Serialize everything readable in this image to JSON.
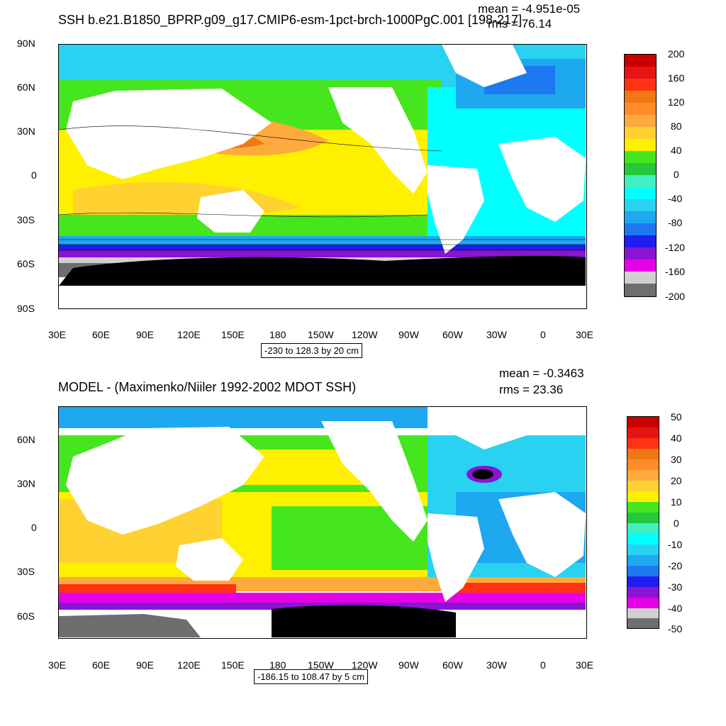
{
  "panels": [
    {
      "title": "SSH b.e21.B1850_BPRP.g09_g17.CMIP6-esm-1pct-brch-1000PgC.001 [198-217]",
      "mean": "mean = -4.951e-05",
      "rms": "rms = 76.14",
      "lat_labels": [
        "90N",
        "60N",
        "30N",
        "0",
        "30S",
        "60S",
        "90S"
      ],
      "lon_labels": [
        "30E",
        "60E",
        "90E",
        "120E",
        "150E",
        "180",
        "150W",
        "120W",
        "90W",
        "60W",
        "30W",
        "0",
        "30E"
      ],
      "range_label": "-230 to 128.3 by 20 cm",
      "colorbar_labels": [
        "200",
        "160",
        "120",
        "80",
        "40",
        "0",
        "-40",
        "-80",
        "-120",
        "-160",
        "-200"
      ]
    },
    {
      "title": "MODEL - (Maximenko/Niiler 1992-2002 MDOT SSH)",
      "mean": "mean = -0.3463",
      "rms": "rms = 23.36",
      "lat_labels": [
        "60N",
        "30N",
        "0",
        "30S",
        "60S"
      ],
      "lon_labels": [
        "30E",
        "60E",
        "90E",
        "120E",
        "150E",
        "180",
        "150W",
        "120W",
        "90W",
        "60W",
        "30W",
        "0",
        "30E"
      ],
      "range_label": "-186.15 to 108.47 by 5 cm",
      "colorbar_labels": [
        "50",
        "40",
        "30",
        "20",
        "10",
        "0",
        "-10",
        "-20",
        "-30",
        "-40",
        "-50"
      ]
    }
  ],
  "colors": {
    "palette": [
      "#6e6e6e",
      "#d0d0d0",
      "#e600e6",
      "#8a14d2",
      "#1e1ef0",
      "#1e78f0",
      "#1ea8f0",
      "#28d2f0",
      "#00ffff",
      "#40f0c0",
      "#23c83c",
      "#46e61e",
      "#fff000",
      "#ffd232",
      "#ffaa3c",
      "#ff8c28",
      "#f07814",
      "#ff3214",
      "#e61414",
      "#c80000"
    ],
    "land": "#ffffff",
    "ice": "#000000"
  }
}
